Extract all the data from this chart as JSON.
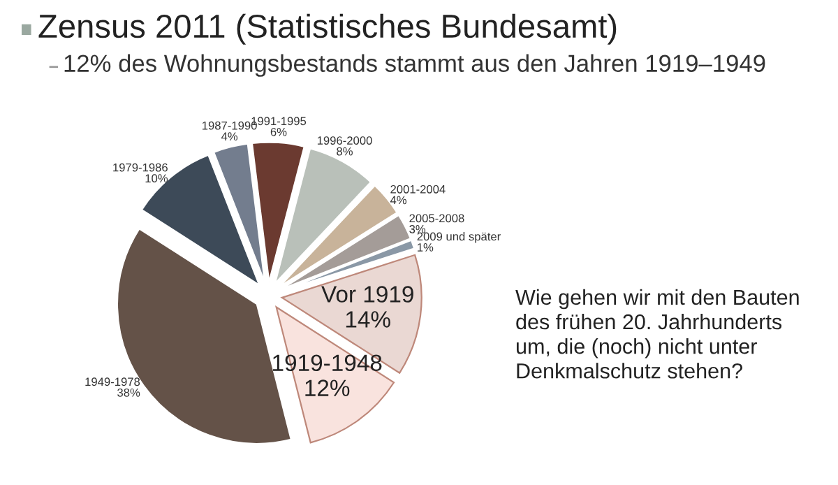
{
  "chart_data": {
    "type": "pie",
    "title": "Zensus 2011 (Statistisches Bundesamt)",
    "subtitle": "12% des Wohnungsbestands stammt aus den Jahren 1919–1949",
    "categories": [
      "1991-1995",
      "1996-2000",
      "2001-2004",
      "2005-2008",
      "2009 und später",
      "Vor 1919",
      "1919-1948",
      "1949-1978",
      "1979-1986",
      "1987-1990"
    ],
    "values": [
      6,
      8,
      4,
      3,
      1,
      14,
      12,
      38,
      10,
      4
    ],
    "value_labels": [
      "6%",
      "8%",
      "4%",
      "3%",
      "1%",
      "14%",
      "12%",
      "38%",
      "10%",
      "4%"
    ],
    "colors": [
      "#6b3a30",
      "#b9c0b9",
      "#c8b39a",
      "#a49c98",
      "#8a98a6",
      "#ead8d3",
      "#f9e3de",
      "#645248",
      "#3d4a58",
      "#737d8e"
    ],
    "annotations": [
      "Wie gehen wir mit den Bauten\ndes frühen 20. Jahrhunderts\num, die (noch) nicht unter\nDenkmalschutz stehen?"
    ]
  }
}
